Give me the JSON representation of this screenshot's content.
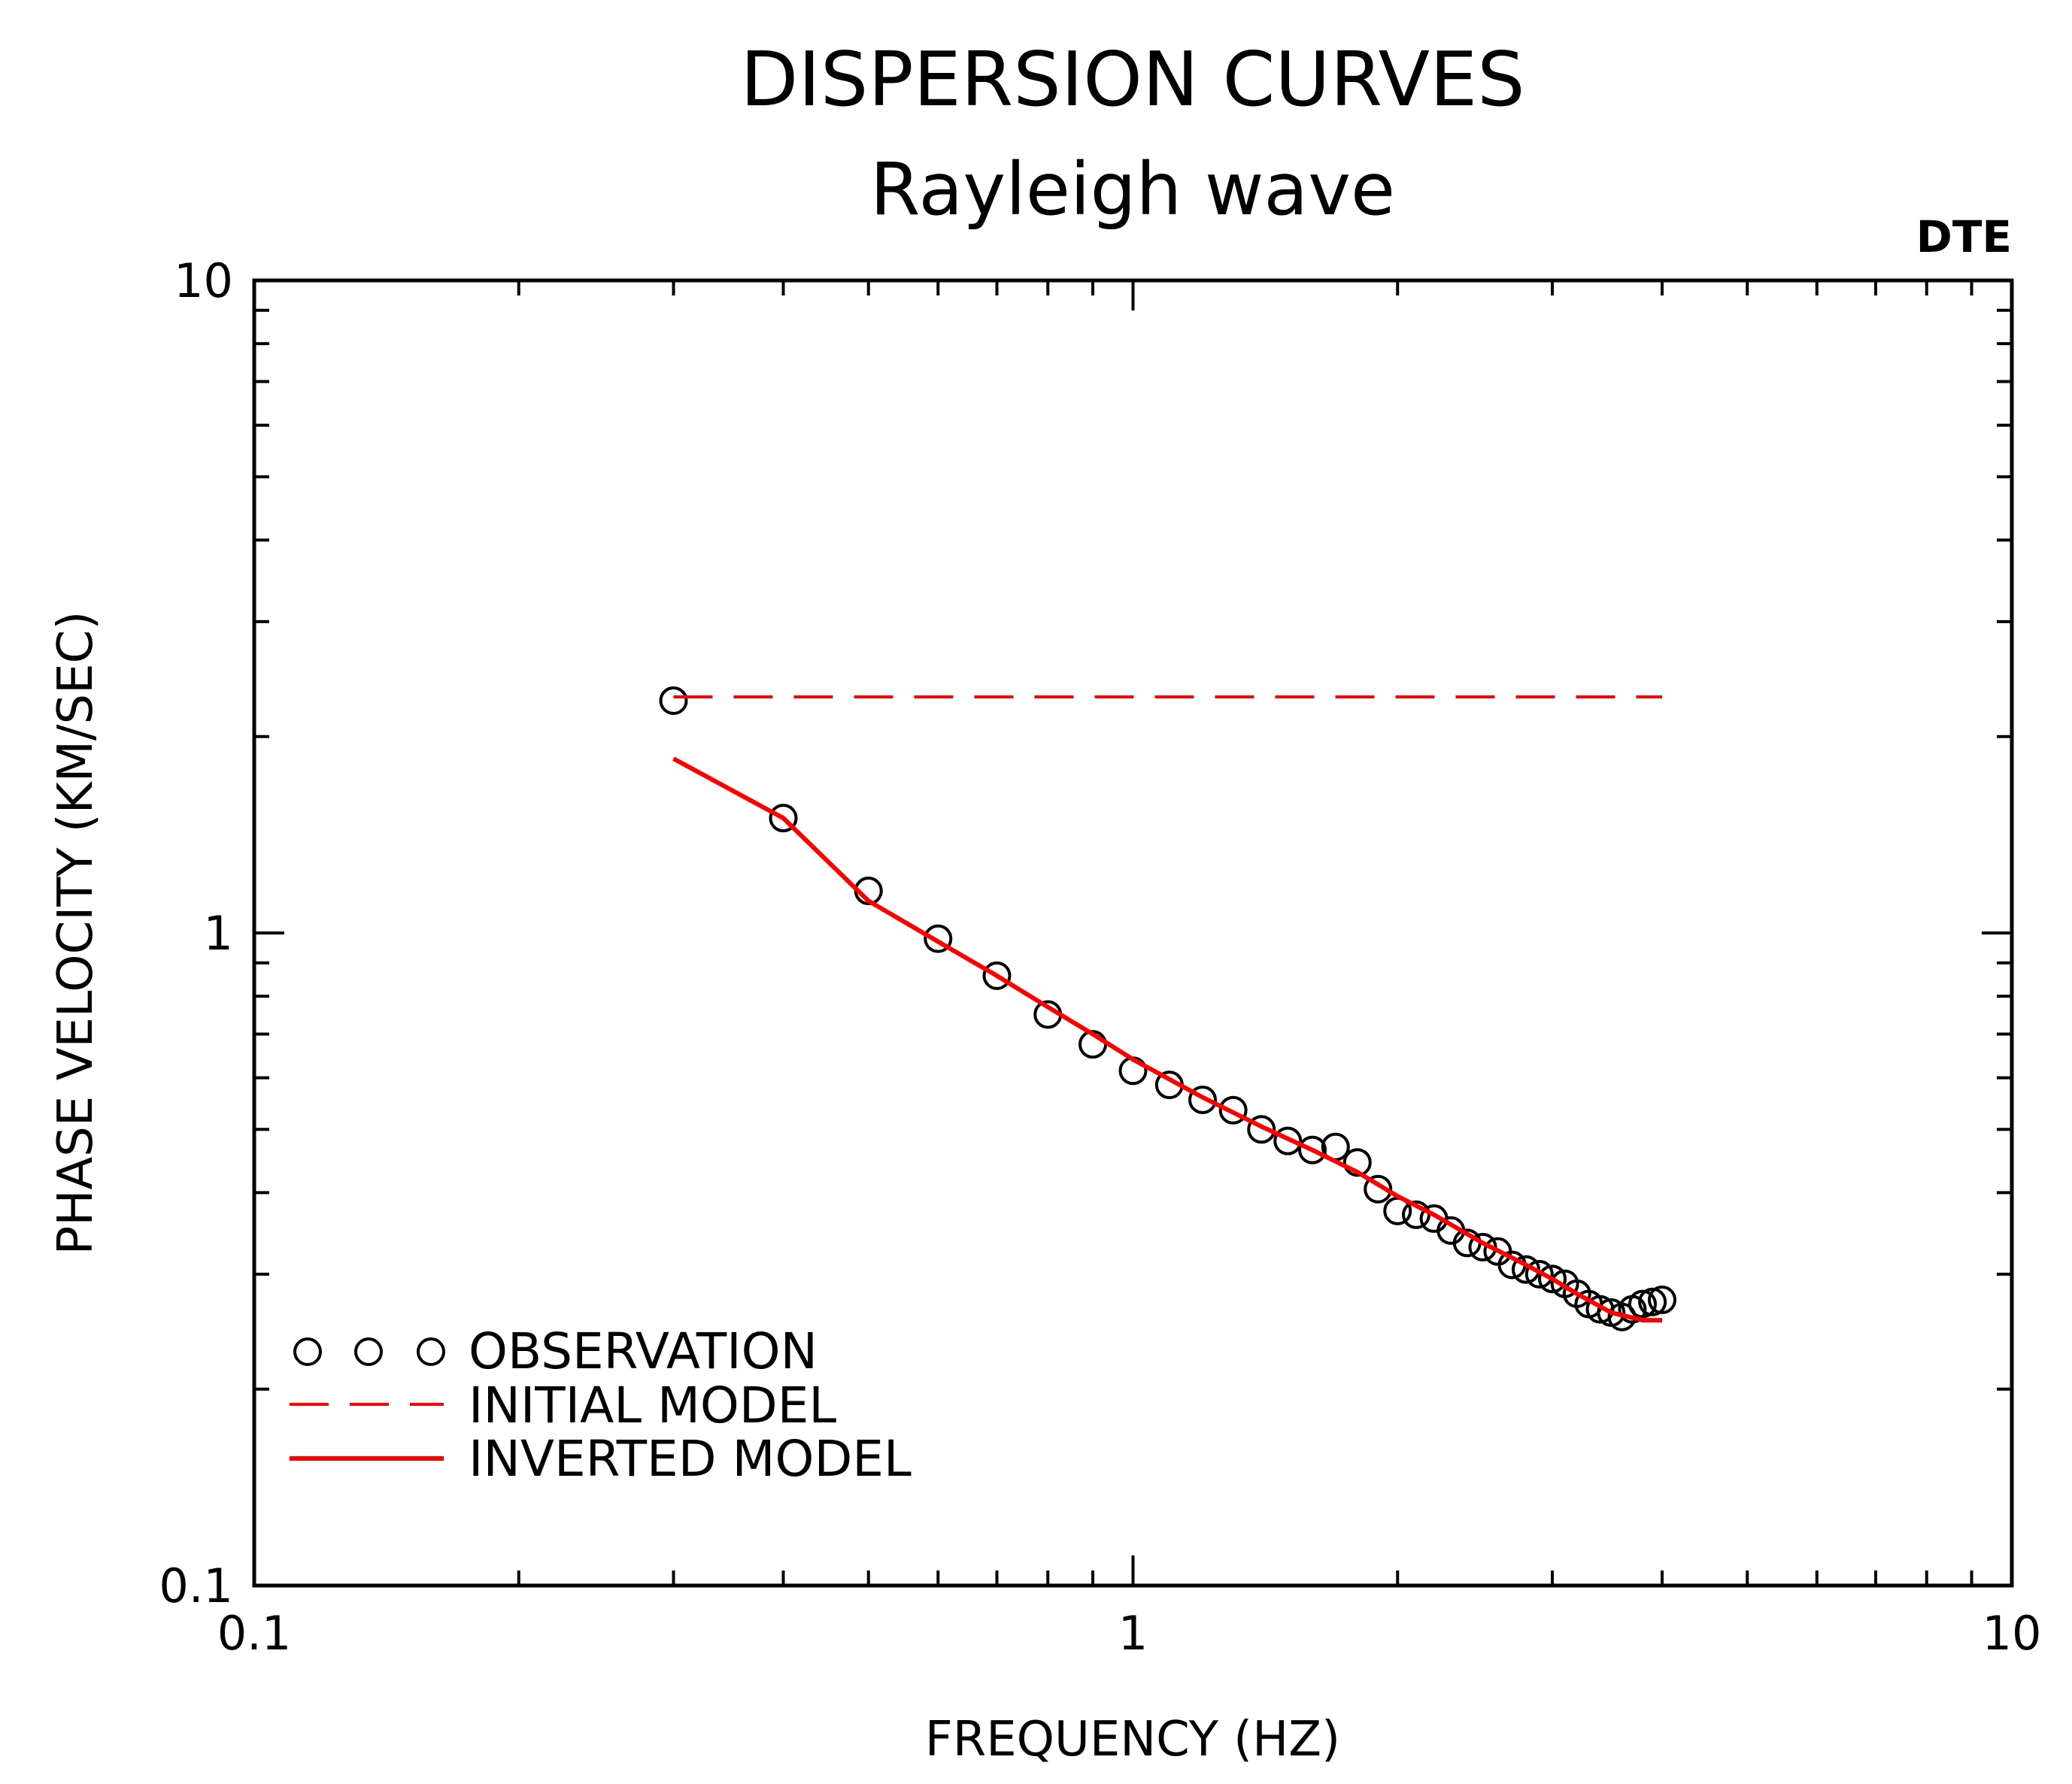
{
  "chart_data": {
    "type": "line",
    "title": "DISPERSION CURVES",
    "subtitle": "Rayleigh wave",
    "corner_tag": "DTE",
    "xlabel": "FREQUENCY (HZ)",
    "ylabel": "PHASE VELOCITY (KM/SEC)",
    "xscale": "log",
    "yscale": "log",
    "xlim": [
      0.1,
      10
    ],
    "ylim": [
      0.1,
      10
    ],
    "xticks": [
      0.1,
      1,
      10
    ],
    "xtick_labels": [
      "0.1",
      "1",
      "10"
    ],
    "yticks": [
      0.1,
      1,
      10
    ],
    "ytick_labels": [
      "0.1",
      "1",
      "10"
    ],
    "grid": false,
    "legend_position": "bottom-left",
    "legend": [
      {
        "label": "OBSERVATION",
        "style": "circles",
        "color": "#000000"
      },
      {
        "label": "INITIAL MODEL",
        "style": "dashed",
        "color": "#ff0000"
      },
      {
        "label": "INVERTED MODEL",
        "style": "solid",
        "color": "#ff0000"
      }
    ],
    "series": [
      {
        "name": "OBSERVATION",
        "style": "circles",
        "color": "#000000",
        "x": [
          0.3,
          0.4,
          0.5,
          0.6,
          0.7,
          0.8,
          0.9,
          1.0,
          1.1,
          1.2,
          1.3,
          1.4,
          1.5,
          1.6,
          1.7,
          1.8,
          1.9,
          2.0,
          2.1,
          2.2,
          2.3,
          2.4,
          2.5,
          2.6,
          2.7,
          2.8,
          2.9,
          3.0,
          3.1,
          3.2,
          3.3,
          3.4,
          3.5,
          3.6,
          3.7,
          3.8,
          3.9,
          4.0
        ],
        "y": [
          2.27,
          1.5,
          1.16,
          0.98,
          0.86,
          0.75,
          0.675,
          0.615,
          0.585,
          0.555,
          0.535,
          0.5,
          0.48,
          0.465,
          0.47,
          0.445,
          0.405,
          0.375,
          0.37,
          0.365,
          0.35,
          0.335,
          0.33,
          0.325,
          0.31,
          0.305,
          0.3,
          0.295,
          0.29,
          0.28,
          0.27,
          0.265,
          0.262,
          0.258,
          0.265,
          0.27,
          0.272,
          0.274
        ]
      },
      {
        "name": "INITIAL MODEL",
        "style": "dashed",
        "color": "#ff0000",
        "x": [
          0.3,
          4.0
        ],
        "y": [
          2.3,
          2.3
        ]
      },
      {
        "name": "INVERTED MODEL",
        "style": "solid",
        "color": "#ff0000",
        "x": [
          0.3,
          0.4,
          0.5,
          0.6,
          0.7,
          0.8,
          0.9,
          1.0,
          1.2,
          1.4,
          1.6,
          1.8,
          2.0,
          2.2,
          2.5,
          2.8,
          3.0,
          3.2,
          3.5,
          3.8,
          4.0
        ],
        "y": [
          1.85,
          1.5,
          1.12,
          0.97,
          0.86,
          0.77,
          0.7,
          0.64,
          0.56,
          0.505,
          0.465,
          0.43,
          0.395,
          0.37,
          0.335,
          0.31,
          0.295,
          0.28,
          0.262,
          0.255,
          0.255
        ]
      }
    ]
  }
}
